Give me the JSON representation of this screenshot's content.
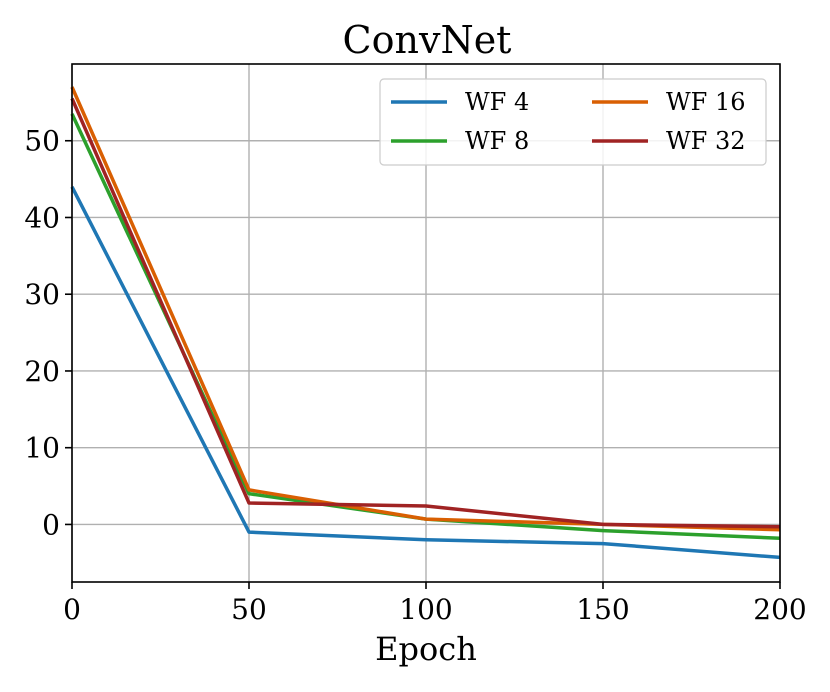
{
  "chart_data": {
    "type": "line",
    "title": "ConvNet",
    "xlabel": "Epoch",
    "ylabel": "",
    "xlim": [
      0,
      200
    ],
    "ylim": [
      -7.5,
      60
    ],
    "xticks": [
      0,
      50,
      100,
      150,
      200
    ],
    "yticks": [
      0,
      10,
      20,
      30,
      40,
      50
    ],
    "grid": true,
    "legend_position": "top-right",
    "legend_columns": 2,
    "x": [
      0,
      50,
      100,
      150,
      200
    ],
    "series": [
      {
        "name": "WF 4",
        "color": "#1f77b4",
        "values": [
          44.0,
          -1.0,
          -2.0,
          -2.5,
          -4.3
        ]
      },
      {
        "name": "WF 8",
        "color": "#2ca02c",
        "values": [
          53.5,
          4.0,
          0.7,
          -0.8,
          -1.8
        ]
      },
      {
        "name": "WF 16",
        "color": "#d95f02",
        "values": [
          57.0,
          4.5,
          0.7,
          0.0,
          -0.7
        ]
      },
      {
        "name": "WF 32",
        "color": "#a02323",
        "values": [
          55.5,
          2.8,
          2.4,
          0.0,
          -0.3
        ]
      }
    ]
  }
}
